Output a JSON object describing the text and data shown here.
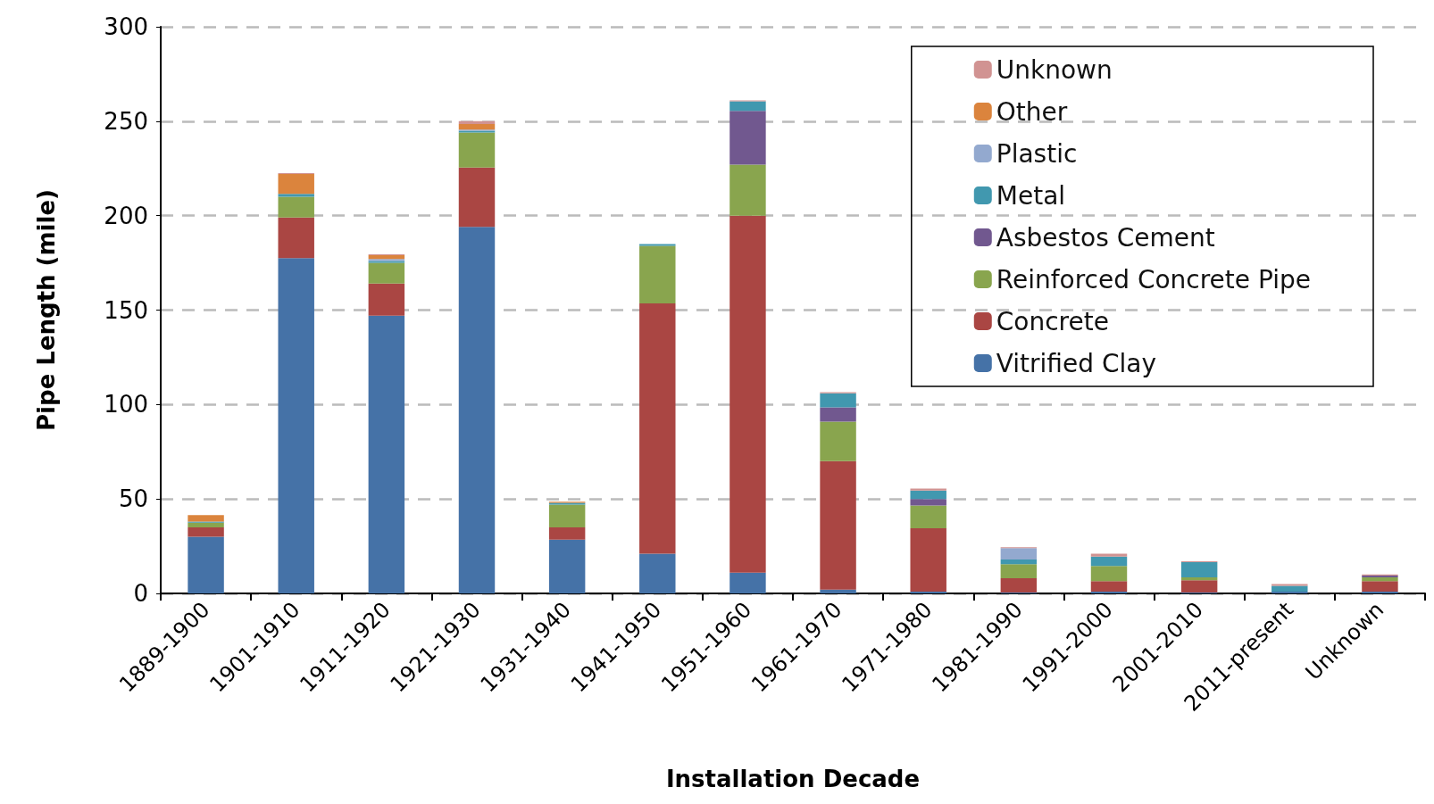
{
  "chart_data": {
    "type": "bar",
    "stacked": true,
    "xlabel": "Installation Decade",
    "ylabel": "Pipe Length (mile)",
    "categories": [
      "1889-1900",
      "1901-1910",
      "1911-1920",
      "1921-1930",
      "1931-1940",
      "1941-1950",
      "1951-1960",
      "1961-1970",
      "1971-1980",
      "1981-1990",
      "1991-2000",
      "2001-2010",
      "2011-present",
      "Unknown"
    ],
    "series": [
      {
        "name": "Vitrified Clay",
        "color": "#4572a7",
        "values": [
          30,
          177.5,
          147,
          194,
          28.5,
          21,
          11,
          2,
          1,
          0.5,
          1,
          0.5,
          1,
          1
        ]
      },
      {
        "name": "Concrete",
        "color": "#aa4643",
        "values": [
          5,
          21.5,
          17,
          31.5,
          6.5,
          132.5,
          189,
          68,
          33.5,
          7.5,
          5.5,
          6.5,
          0,
          5.5
        ]
      },
      {
        "name": "Reinforced Concrete Pipe",
        "color": "#89a54e",
        "values": [
          2.5,
          11,
          11,
          18.5,
          12,
          30.5,
          27,
          21,
          12,
          7.5,
          8,
          1.5,
          0,
          2
        ]
      },
      {
        "name": "Asbestos Cement",
        "color": "#71588f",
        "values": [
          0,
          0,
          0,
          0,
          0,
          0,
          28.5,
          7.5,
          3.5,
          0,
          0,
          0,
          0,
          1
        ]
      },
      {
        "name": "Metal",
        "color": "#4198af",
        "values": [
          0.5,
          1.5,
          1,
          1,
          1,
          1,
          5,
          7.5,
          4.5,
          2.5,
          5,
          8,
          3,
          0
        ]
      },
      {
        "name": "Plastic",
        "color": "#93a9cf",
        "values": [
          0,
          0,
          1,
          0.5,
          0,
          0,
          0,
          0,
          0,
          6,
          0,
          0,
          0,
          0
        ]
      },
      {
        "name": "Other",
        "color": "#db843d",
        "values": [
          3.5,
          10.5,
          2,
          3,
          0.5,
          0,
          0,
          0,
          0,
          0,
          0,
          0,
          0,
          0
        ]
      },
      {
        "name": "Unknown",
        "color": "#d19392",
        "values": [
          0,
          0.5,
          0.5,
          1.5,
          0,
          0,
          0.5,
          0.5,
          1,
          0.5,
          1.5,
          0.5,
          1,
          0.5
        ]
      }
    ],
    "ylim": [
      0,
      300
    ],
    "yticks": [
      0,
      50,
      100,
      150,
      200,
      250,
      300
    ],
    "grid": "y",
    "legend": "top right"
  }
}
